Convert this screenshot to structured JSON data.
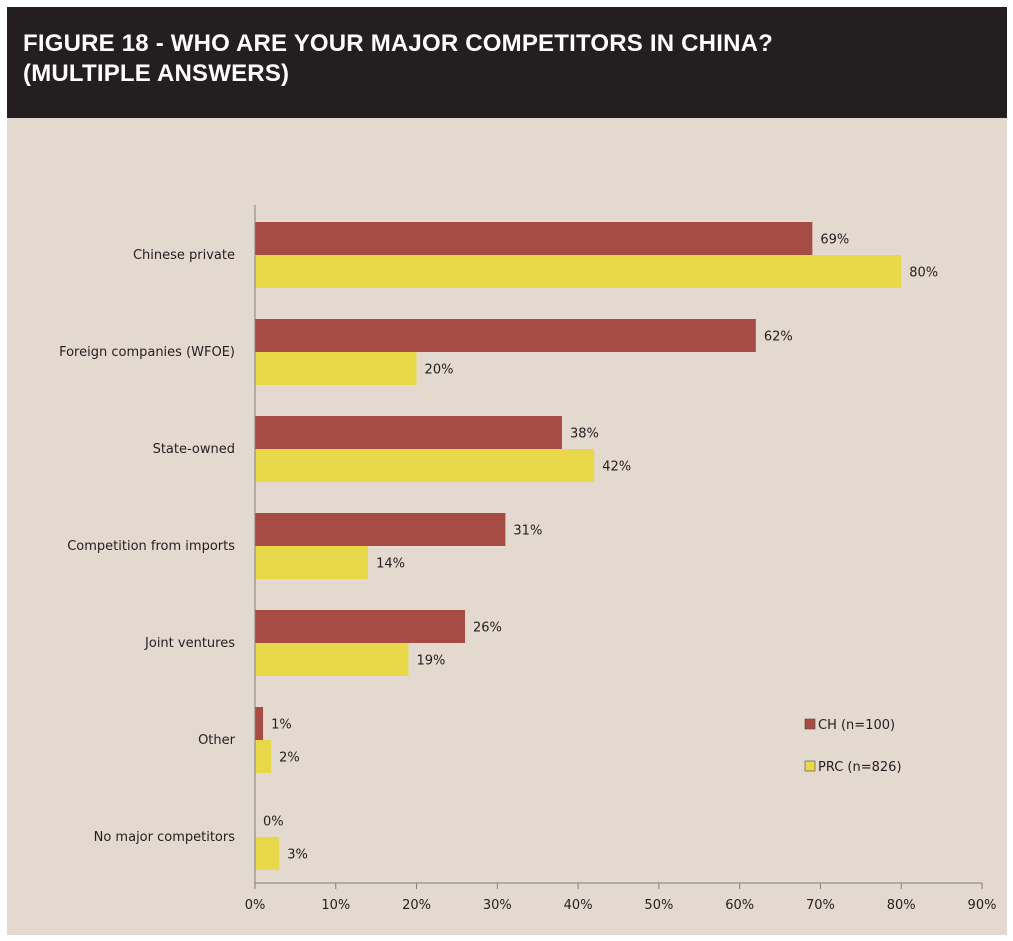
{
  "figure": {
    "title": "FIGURE 18 - WHO ARE YOUR MAJOR COMPETITORS IN CHINA?\n(MULTIPLE ANSWERS)"
  },
  "colors": {
    "background": "#e3d9cf",
    "header": "#231f20",
    "ch": "#a64c45",
    "prc": "#e8d84a",
    "axis": "#7f7f7f"
  },
  "chart_data": {
    "type": "bar",
    "orientation": "horizontal",
    "categories": [
      "Chinese private",
      "Foreign companies (WFOE)",
      "State-owned",
      "Competition from imports",
      "Joint ventures",
      "Other",
      "No major competitors"
    ],
    "series": [
      {
        "name": "CH (n=100)",
        "values": [
          69,
          62,
          38,
          31,
          26,
          1,
          0
        ],
        "labels": [
          "69%",
          "62%",
          "38%",
          "31%",
          "26%",
          "1%",
          "0%"
        ]
      },
      {
        "name": "PRC (n=826)",
        "values": [
          80,
          20,
          42,
          14,
          19,
          2,
          3
        ],
        "labels": [
          "80%",
          "20%",
          "42%",
          "14%",
          "19%",
          "2%",
          "3%"
        ]
      }
    ],
    "xlim": [
      0,
      90
    ],
    "xticks": [
      "0%",
      "10%",
      "20%",
      "30%",
      "40%",
      "50%",
      "60%",
      "70%",
      "80%",
      "90%"
    ],
    "xlabel": "",
    "ylabel": "",
    "grid": false,
    "legend_position": "right"
  }
}
